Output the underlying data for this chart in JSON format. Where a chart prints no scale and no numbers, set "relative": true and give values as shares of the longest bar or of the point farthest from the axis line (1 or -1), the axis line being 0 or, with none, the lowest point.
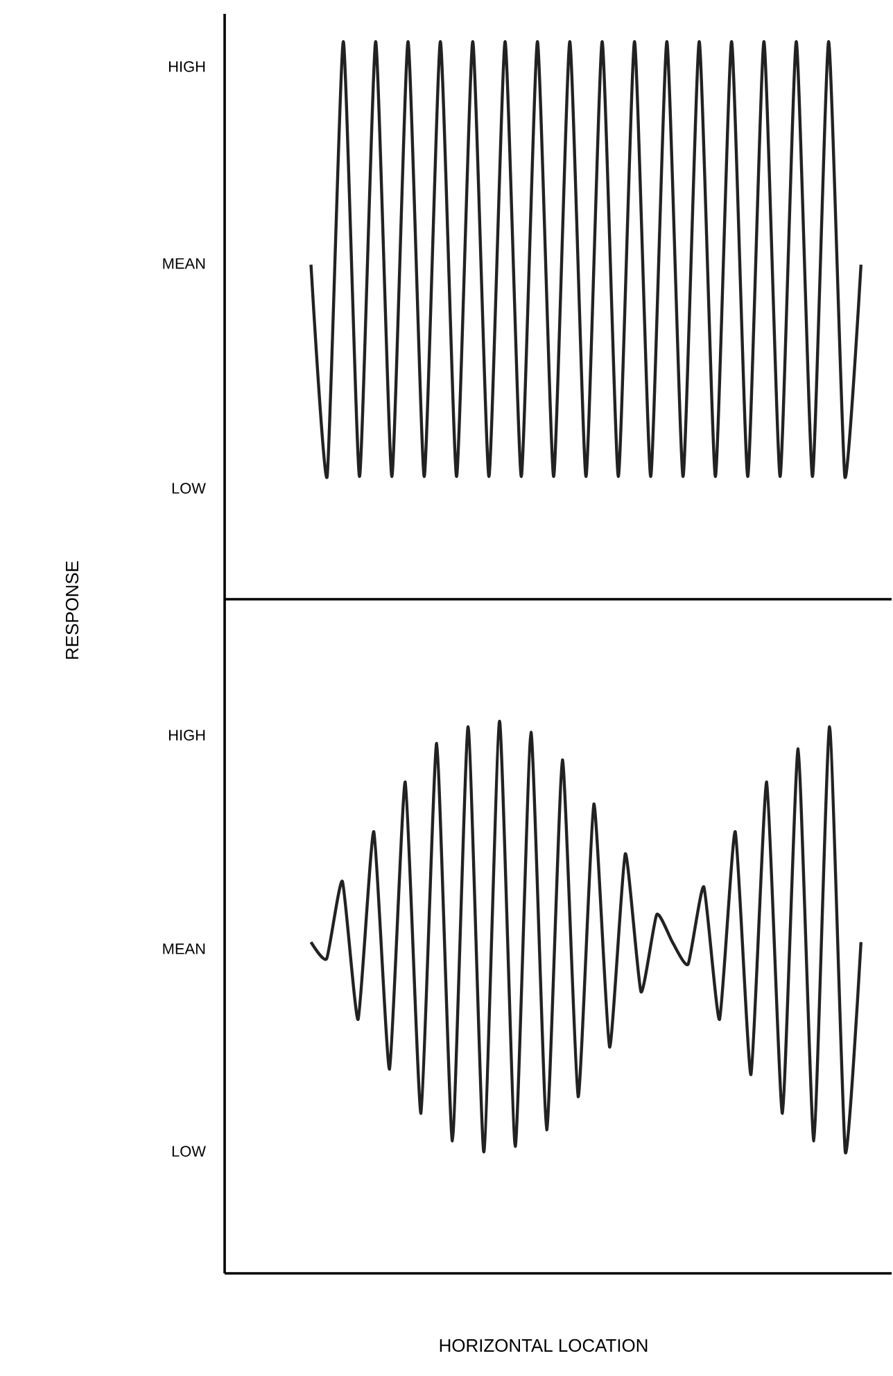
{
  "chart_data": [
    {
      "type": "line",
      "ylabel": "RESPONSE",
      "color": "#222222",
      "relative": true,
      "tick_labels": false,
      "categories": [
        null,
        null,
        null,
        null,
        null,
        null,
        null,
        null,
        null,
        null,
        null,
        null,
        null,
        null,
        null,
        null,
        null,
        null,
        null,
        null,
        null,
        null,
        null,
        null,
        null,
        null,
        null,
        null,
        null,
        null,
        null,
        null,
        null,
        null,
        null
      ],
      "values": [
        0.6,
        0.22,
        1.0,
        0.22,
        1.0,
        0.22,
        1.0,
        0.22,
        1.0,
        0.22,
        1.0,
        0.22,
        1.0,
        0.22,
        1.0,
        0.22,
        1.0,
        0.22,
        1.0,
        0.22,
        1.0,
        0.22,
        1.0,
        0.22,
        1.0,
        0.22,
        1.0,
        0.22,
        1.0,
        0.22,
        1.0,
        0.22,
        1.0,
        0.22,
        0.6
      ],
      "annotations": [
        "HIGH",
        "MEAN",
        "LOW"
      ]
    },
    {
      "type": "line",
      "xlabel": "HORIZONTAL LOCATION",
      "color": "#222222",
      "relative": true,
      "tick_labels": false,
      "categories": [
        null,
        null,
        null,
        null,
        null,
        null,
        null,
        null,
        null,
        null,
        null,
        null,
        null,
        null,
        null,
        null,
        null,
        null,
        null,
        null,
        null,
        null,
        null,
        null,
        null,
        null,
        null,
        null,
        null,
        null,
        null,
        null,
        null,
        null,
        null,
        null
      ],
      "values": [
        0.6,
        0.57,
        0.71,
        0.46,
        0.8,
        0.37,
        0.89,
        0.29,
        0.96,
        0.24,
        0.99,
        0.22,
        1.0,
        0.23,
        0.98,
        0.26,
        0.93,
        0.32,
        0.85,
        0.41,
        0.76,
        0.51,
        0.65,
        0.6,
        0.56,
        0.7,
        0.46,
        0.8,
        0.36,
        0.89,
        0.29,
        0.95,
        0.24,
        0.99,
        0.22,
        0.6
      ],
      "annotations": [
        "HIGH",
        "MEAN",
        "LOW"
      ]
    }
  ]
}
